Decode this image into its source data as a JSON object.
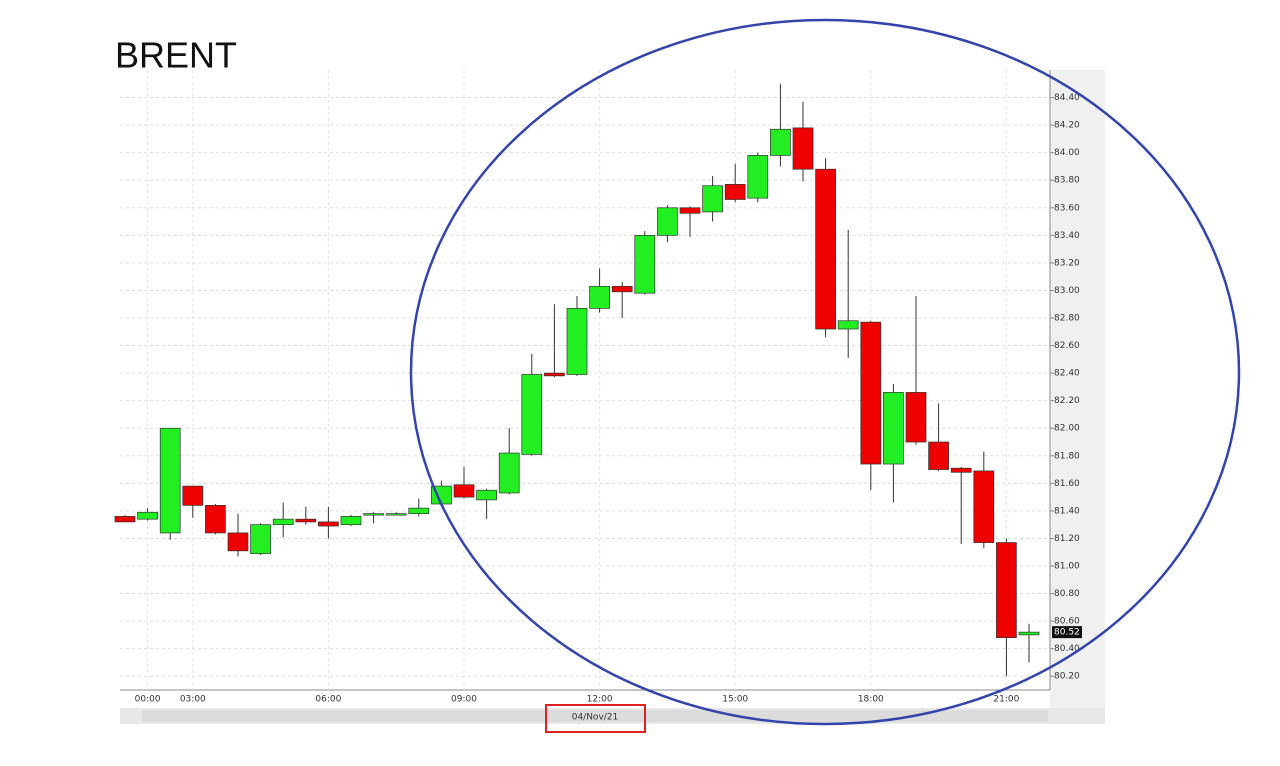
{
  "chart_data": {
    "type": "candlestick",
    "title": "BRENT",
    "xlabel": "04/Nov/21",
    "categories": [
      null,
      "00:00",
      null,
      "03:00",
      null,
      null,
      null,
      null,
      null,
      "06:00",
      null,
      null,
      null,
      null,
      null,
      "09:00",
      null,
      null,
      null,
      null,
      null,
      "12:00",
      null,
      null,
      null,
      null,
      null,
      "15:00",
      null,
      null,
      null,
      null,
      null,
      "18:00",
      null,
      null,
      null,
      null,
      null,
      "21:00",
      null
    ],
    "open": [
      81.36,
      81.34,
      81.24,
      81.58,
      81.44,
      81.24,
      81.09,
      81.3,
      81.34,
      81.32,
      81.3,
      81.37,
      81.38,
      81.38,
      81.45,
      81.59,
      81.48,
      81.53,
      81.81,
      82.4,
      82.39,
      82.87,
      83.03,
      82.98,
      83.4,
      83.6,
      83.57,
      83.77,
      83.67,
      83.98,
      84.18,
      83.88,
      82.72,
      82.77,
      81.74,
      82.26,
      81.9,
      81.71,
      81.69,
      81.17,
      80.5
    ],
    "high": [
      81.37,
      81.42,
      82.0,
      81.58,
      81.45,
      81.38,
      81.31,
      81.46,
      81.43,
      81.43,
      81.37,
      81.39,
      81.39,
      81.49,
      81.62,
      81.72,
      81.56,
      82.0,
      82.54,
      82.9,
      82.96,
      83.16,
      83.06,
      83.43,
      83.62,
      83.61,
      83.83,
      83.92,
      84.0,
      84.5,
      84.37,
      83.96,
      83.44,
      82.78,
      82.32,
      82.96,
      82.18,
      81.72,
      81.83,
      81.2,
      80.58
    ],
    "low": [
      81.32,
      81.33,
      81.19,
      81.35,
      81.23,
      81.07,
      81.08,
      81.21,
      81.3,
      81.2,
      81.29,
      81.31,
      81.37,
      81.36,
      81.44,
      81.49,
      81.34,
      81.52,
      81.8,
      82.37,
      82.38,
      82.84,
      82.8,
      82.97,
      83.35,
      83.39,
      83.5,
      83.64,
      83.64,
      83.9,
      83.79,
      82.66,
      82.51,
      81.55,
      81.46,
      81.88,
      81.69,
      81.16,
      81.13,
      80.2,
      80.3
    ],
    "close": [
      81.32,
      81.39,
      82.0,
      81.44,
      81.24,
      81.11,
      81.3,
      81.34,
      81.32,
      81.29,
      81.36,
      81.38,
      81.38,
      81.42,
      81.58,
      81.5,
      81.55,
      81.82,
      82.39,
      82.38,
      82.87,
      83.03,
      82.99,
      83.4,
      83.6,
      83.56,
      83.76,
      83.66,
      83.98,
      84.17,
      83.88,
      82.72,
      82.78,
      81.74,
      82.26,
      81.9,
      81.7,
      81.68,
      81.17,
      80.48,
      80.52
    ],
    "up_color": "#22ee22",
    "down_color": "#ee0000",
    "last_price": 80.52,
    "ylim": [
      80.1,
      84.6
    ],
    "yticks": [
      {
        "value": 80.2,
        "label": "80.20"
      },
      {
        "value": 80.4,
        "label": "80.40"
      },
      {
        "value": 80.6,
        "label": "80.60"
      },
      {
        "value": 80.8,
        "label": "80.80"
      },
      {
        "value": 81.0,
        "label": "81.00"
      },
      {
        "value": 81.2,
        "label": "81.20"
      },
      {
        "value": 81.4,
        "label": "81.40"
      },
      {
        "value": 81.6,
        "label": "81.60"
      },
      {
        "value": 81.8,
        "label": "81.80"
      },
      {
        "value": 82.0,
        "label": "82.00"
      },
      {
        "value": 82.2,
        "label": "82.20"
      },
      {
        "value": 82.4,
        "label": "82.40"
      },
      {
        "value": 82.6,
        "label": "82.60"
      },
      {
        "value": 82.8,
        "label": "82.80"
      },
      {
        "value": 83.0,
        "label": "83.00"
      },
      {
        "value": 83.2,
        "label": "83.20"
      },
      {
        "value": 83.4,
        "label": "83.40"
      },
      {
        "value": 83.6,
        "label": "83.60"
      },
      {
        "value": 83.8,
        "label": "83.80"
      },
      {
        "value": 84.0,
        "label": "84.00"
      },
      {
        "value": 84.2,
        "label": "84.20"
      },
      {
        "value": 84.4,
        "label": "84.40"
      }
    ],
    "grid": true
  }
}
